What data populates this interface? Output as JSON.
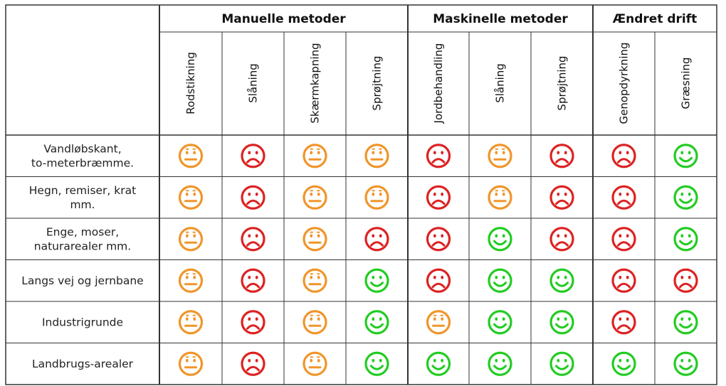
{
  "groups": [
    {
      "label": "Manuelle metoder",
      "span": 4
    },
    {
      "label": "Maskinelle metoder",
      "span": 3
    },
    {
      "label": "Ændret drift",
      "span": 2
    }
  ],
  "columns": [
    "Rodstikning",
    "Slåning",
    "Skærmkapning",
    "Sprøjtning",
    "Jordbehandling",
    "Slåning",
    "Sprøjtning",
    "Genopdyrkning",
    "Græsning"
  ],
  "rows": [
    {
      "label": [
        "Vandløbskant,",
        "to-meterbræmme."
      ],
      "ratings": [
        "neutral",
        "sad",
        "neutral",
        "neutral",
        "sad",
        "neutral",
        "sad",
        "sad",
        "happy"
      ]
    },
    {
      "label": [
        "Hegn, remiser, krat",
        "mm."
      ],
      "ratings": [
        "neutral",
        "sad",
        "neutral",
        "neutral",
        "sad",
        "neutral",
        "sad",
        "sad",
        "happy"
      ]
    },
    {
      "label": [
        "Enge, moser,",
        "naturarealer mm."
      ],
      "ratings": [
        "neutral",
        "sad",
        "neutral",
        "sad",
        "sad",
        "happy",
        "sad",
        "sad",
        "happy"
      ]
    },
    {
      "label": [
        "Langs vej og jernbane"
      ],
      "ratings": [
        "neutral",
        "sad",
        "neutral",
        "happy",
        "sad",
        "happy",
        "happy",
        "sad",
        "sad"
      ]
    },
    {
      "label": [
        "Industrigrunde"
      ],
      "ratings": [
        "neutral",
        "sad",
        "neutral",
        "happy",
        "neutral",
        "happy",
        "happy",
        "sad",
        "happy"
      ]
    },
    {
      "label": [
        "Landbrugs-arealer"
      ],
      "ratings": [
        "neutral",
        "sad",
        "neutral",
        "happy",
        "happy",
        "happy",
        "happy",
        "happy",
        "happy"
      ]
    }
  ],
  "colors": {
    "happy": "#22cc22",
    "neutral": "#f0952a",
    "sad": "#dd2222",
    "grid": "#333333"
  }
}
